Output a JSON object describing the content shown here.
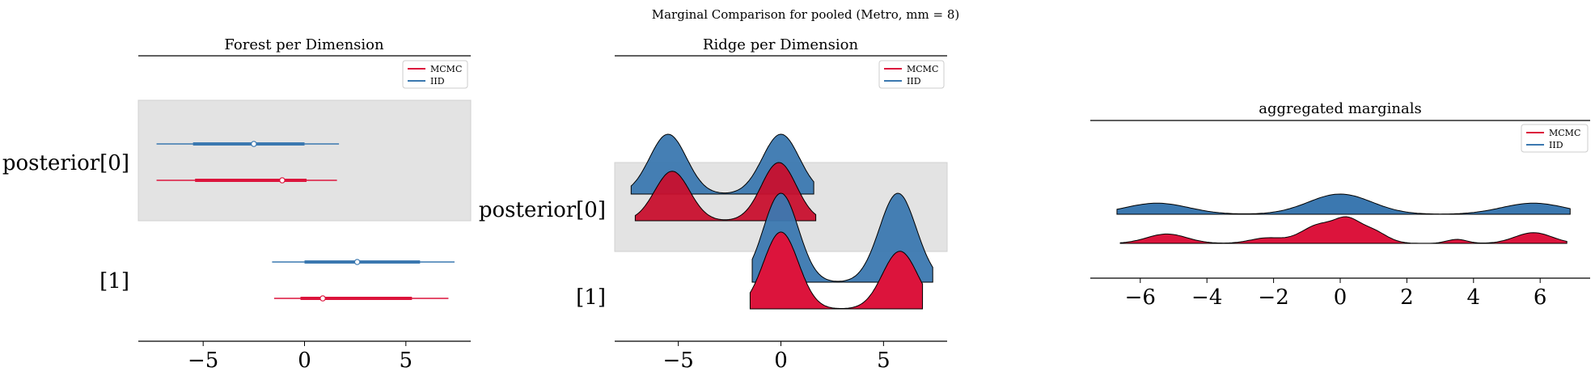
{
  "figure": {
    "suptitle": "Marginal Comparison for pooled (Metro, mm = 8)"
  },
  "legend": {
    "mcmc": "MCMC",
    "iid": "IID"
  },
  "colors": {
    "mcmc": "#dc143c",
    "iid": "#3b78b0",
    "shade": "#e3e3e3",
    "axis": "#000000"
  },
  "chart_data": [
    {
      "type": "forest",
      "title": "Forest per Dimension",
      "xlim": [
        -8.2,
        8.2
      ],
      "xticks": [
        -5,
        0,
        5
      ],
      "legend_position": "upper right",
      "ylabels": [
        "posterior[0]",
        "[1]"
      ],
      "shaded_row": 0,
      "rows": [
        {
          "label": "posterior[0]",
          "series": [
            {
              "name": "IID",
              "hdi94": [
                -7.3,
                1.7
              ],
              "hdi50": [
                -5.5,
                0.0
              ],
              "point": -2.5
            },
            {
              "name": "MCMC",
              "hdi94": [
                -7.3,
                1.6
              ],
              "hdi50": [
                -5.4,
                0.1
              ],
              "point": -1.1
            }
          ]
        },
        {
          "label": "[1]",
          "series": [
            {
              "name": "IID",
              "hdi94": [
                -1.6,
                7.4
              ],
              "hdi50": [
                0.0,
                5.7
              ],
              "point": 2.6
            },
            {
              "name": "MCMC",
              "hdi94": [
                -1.5,
                7.1
              ],
              "hdi50": [
                -0.2,
                5.3
              ],
              "point": 0.9
            }
          ]
        }
      ]
    },
    {
      "type": "ridge",
      "title": "Ridge per Dimension",
      "xlim": [
        -8.1,
        8.1
      ],
      "xticks": [
        -5,
        0,
        5
      ],
      "legend_position": "upper right",
      "ylabels": [
        "posterior[0]",
        "[1]"
      ],
      "shaded_row": 0,
      "rows": [
        {
          "label": "posterior[0]",
          "series": [
            {
              "name": "IID",
              "range": [
                -7.3,
                1.6
              ],
              "modes": [
                [
                  -5.5,
                  0.9,
                  1.0
                ],
                [
                  0.0,
                  0.9,
                  1.0
                ]
              ]
            },
            {
              "name": "MCMC",
              "range": [
                -7.1,
                1.7
              ],
              "modes": [
                [
                  -5.3,
                  0.85,
                  0.85
                ],
                [
                  -0.1,
                  0.85,
                  1.0
                ]
              ]
            }
          ]
        },
        {
          "label": "[1]",
          "series": [
            {
              "name": "IID",
              "range": [
                -1.4,
                7.4
              ],
              "modes": [
                [
                  0.0,
                  0.85,
                  1.0
                ],
                [
                  5.7,
                  0.9,
                  1.0
                ]
              ]
            },
            {
              "name": "MCMC",
              "range": [
                -1.5,
                6.9
              ],
              "modes": [
                [
                  0.0,
                  0.85,
                  1.0
                ],
                [
                  5.8,
                  0.85,
                  0.75
                ]
              ]
            }
          ]
        }
      ]
    },
    {
      "type": "ridge",
      "title": "aggregated marginals",
      "xlim": [
        -7.5,
        7.5
      ],
      "xticks": [
        -6,
        -4,
        -2,
        0,
        2,
        4,
        6
      ],
      "legend_position": "upper right",
      "series": [
        {
          "name": "IID",
          "range": [
            -6.7,
            6.9
          ],
          "modes": [
            [
              -5.5,
              0.95,
              0.55
            ],
            [
              0.0,
              0.95,
              1.0
            ],
            [
              5.8,
              0.95,
              0.55
            ]
          ]
        },
        {
          "name": "MCMC",
          "range": [
            -6.6,
            6.8
          ],
          "modes": [
            [
              -5.2,
              0.6,
              0.35
            ],
            [
              -2.2,
              0.5,
              0.2
            ],
            [
              -0.6,
              0.55,
              0.7
            ],
            [
              0.2,
              0.35,
              0.6
            ],
            [
              0.9,
              0.45,
              0.5
            ],
            [
              5.8,
              0.55,
              0.4
            ],
            [
              3.5,
              0.3,
              0.15
            ]
          ]
        }
      ]
    }
  ]
}
